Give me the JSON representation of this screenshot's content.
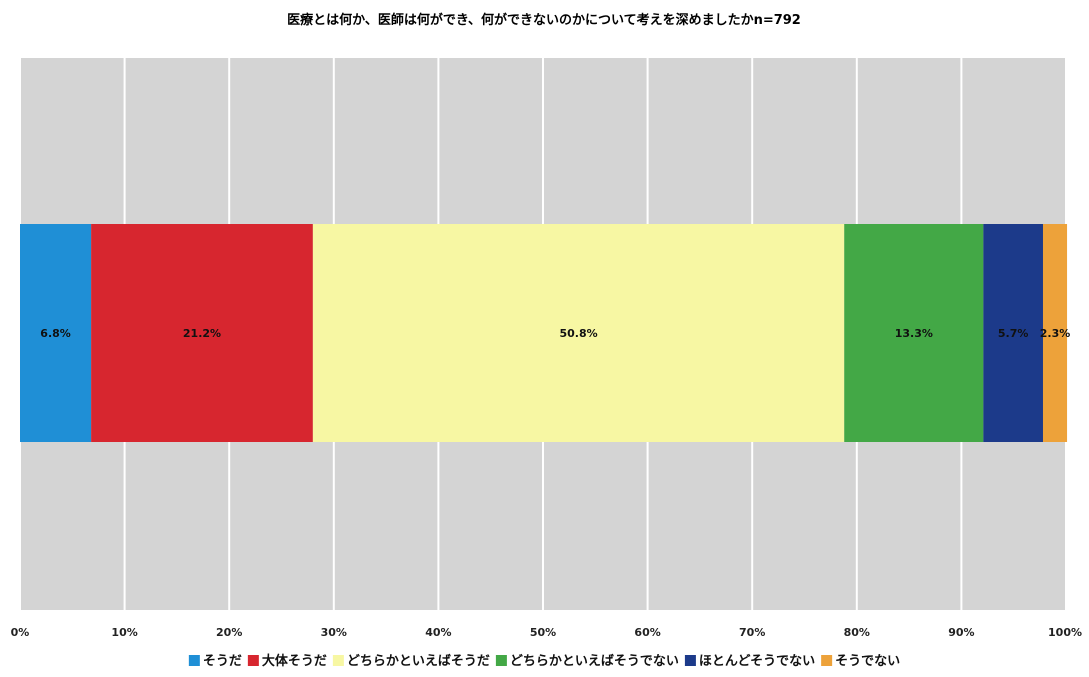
{
  "chart_data": {
    "type": "bar",
    "orientation": "horizontal",
    "stacked": true,
    "percent": true,
    "title": "医療とは何か、医師は何ができ、何ができないのかについて考えを深めましたかn=792",
    "categories": [
      ""
    ],
    "series": [
      {
        "name": "そうだ",
        "values": [
          6.8
        ],
        "label": "6.8%",
        "color": "#1f8fd6"
      },
      {
        "name": "大体そうだ",
        "values": [
          21.2
        ],
        "label": "21.2%",
        "color": "#d7262f"
      },
      {
        "name": "どちらかといえばそうだ",
        "values": [
          50.8
        ],
        "label": "50.8%",
        "color": "#f7f7a3"
      },
      {
        "name": "どちらかといえばそうでない",
        "values": [
          13.3
        ],
        "label": "13.3%",
        "color": "#43a846"
      },
      {
        "name": "ほとんどそうでない",
        "values": [
          5.7
        ],
        "label": "5.7%",
        "color": "#1c3a8a"
      },
      {
        "name": "そうでない",
        "values": [
          2.3
        ],
        "label": "2.3%",
        "color": "#eda23a"
      }
    ],
    "x_ticks": [
      "0%",
      "10%",
      "20%",
      "30%",
      "40%",
      "50%",
      "60%",
      "70%",
      "80%",
      "90%",
      "100%"
    ],
    "xlim": [
      0,
      100
    ],
    "grid": true,
    "legend_position": "bottom",
    "plot_background": "#d4d4d4"
  }
}
